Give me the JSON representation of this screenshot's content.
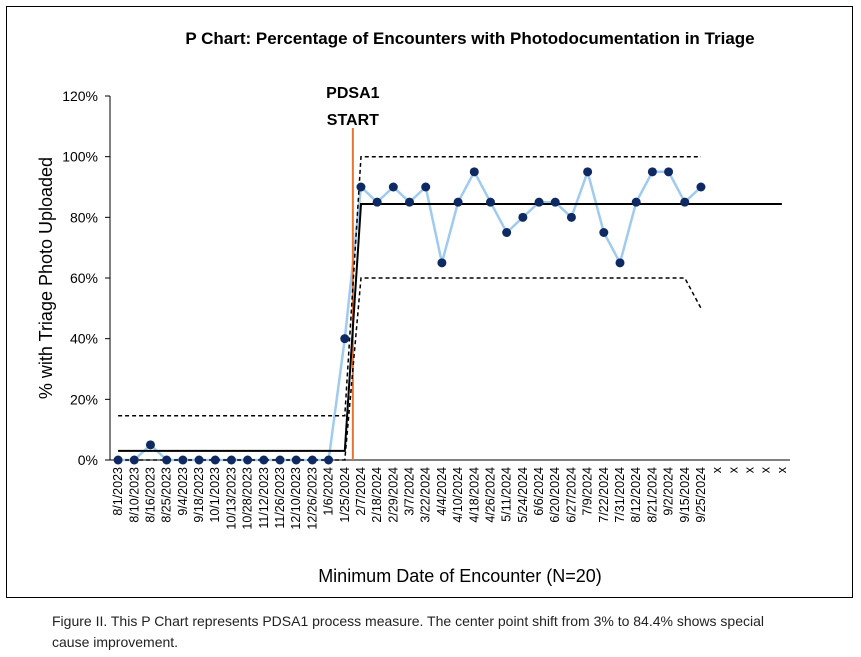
{
  "chart_data": {
    "type": "line",
    "title": "P Chart: Percentage of Encounters with Photodocumentation in Triage",
    "x_label": "Minimum Date of Encounter (N=20)",
    "y_label": "% with Triage Photo Uploaded",
    "categories": [
      "8/1/2023",
      "8/10/2023",
      "8/16/2023",
      "8/25/2023",
      "9/4/2023",
      "9/18/2023",
      "10/1/2023",
      "10/13/2023",
      "10/28/2023",
      "11/12/2023",
      "11/26/2023",
      "12/10/2023",
      "12/26/2023",
      "1/6/2024",
      "1/25/2024",
      "2/7/2024",
      "2/18/2024",
      "2/29/2024",
      "3/7/2024",
      "3/22/2024",
      "4/4/2024",
      "4/10/2024",
      "4/18/2024",
      "4/26/2024",
      "5/11/2024",
      "5/24/2024",
      "6/6/2024",
      "6/20/2024",
      "6/27/2024",
      "7/9/2024",
      "7/22/2024",
      "7/31/2024",
      "8/12/2024",
      "8/21/2024",
      "9/2/2024",
      "9/15/2024",
      "9/25/2024",
      "x",
      "x",
      "x",
      "x",
      "x"
    ],
    "series": [
      {
        "color": "#9fcbf0",
        "marker_color": "#0f2a63",
        "markers": true,
        "style": "solid",
        "values": [
          0,
          0,
          5,
          0,
          0,
          0,
          0,
          0,
          0,
          0,
          0,
          0,
          0,
          0,
          40,
          90,
          85,
          90,
          85,
          90,
          65,
          85,
          95,
          85,
          75,
          80,
          85,
          85,
          80,
          95,
          75,
          65,
          85,
          95,
          95,
          85,
          90,
          null,
          null,
          null,
          null,
          null
        ]
      },
      {
        "color": "#000000",
        "markers": false,
        "style": "solid",
        "values": [
          3,
          3,
          3,
          3,
          3,
          3,
          3,
          3,
          3,
          3,
          3,
          3,
          3,
          3,
          3,
          84.4,
          84.4,
          84.4,
          84.4,
          84.4,
          84.4,
          84.4,
          84.4,
          84.4,
          84.4,
          84.4,
          84.4,
          84.4,
          84.4,
          84.4,
          84.4,
          84.4,
          84.4,
          84.4,
          84.4,
          84.4,
          84.4,
          84.4,
          84.4,
          84.4,
          84.4,
          84.4
        ]
      },
      {
        "color": "#000000",
        "markers": false,
        "style": "dashed",
        "values": [
          14.6,
          14.6,
          14.6,
          14.6,
          14.6,
          14.6,
          14.6,
          14.6,
          14.6,
          14.6,
          14.6,
          14.6,
          14.6,
          14.6,
          14.6,
          100,
          100,
          100,
          100,
          100,
          100,
          100,
          100,
          100,
          100,
          100,
          100,
          100,
          100,
          100,
          100,
          100,
          100,
          100,
          100,
          100,
          100,
          null,
          null,
          null,
          null,
          null
        ]
      },
      {
        "color": "#000000",
        "markers": false,
        "style": "dashed",
        "values": [
          0,
          0,
          0,
          0,
          0,
          0,
          0,
          0,
          0,
          0,
          0,
          0,
          0,
          0,
          0,
          60,
          60,
          60,
          60,
          60,
          60,
          60,
          60,
          60,
          60,
          60,
          60,
          60,
          60,
          60,
          60,
          60,
          60,
          60,
          60,
          60,
          50,
          null,
          null,
          null,
          null,
          null
        ]
      }
    ],
    "annotation": {
      "lines": [
        "PDSA1",
        "START"
      ],
      "color": "#e8742f"
    },
    "ylim": [
      0,
      120
    ],
    "yticks": [
      {
        "value": 0,
        "label": "0%"
      },
      {
        "value": 20,
        "label": "20%"
      },
      {
        "value": 40,
        "label": "40%"
      },
      {
        "value": 60,
        "label": "60%"
      },
      {
        "value": 80,
        "label": "80%"
      },
      {
        "value": 100,
        "label": "100%"
      },
      {
        "value": 120,
        "label": "120%"
      }
    ],
    "grid": false
  },
  "caption": "Figure II. This P Chart represents PDSA1 process measure. The center point shift from 3% to 84.4% shows special cause improvement."
}
